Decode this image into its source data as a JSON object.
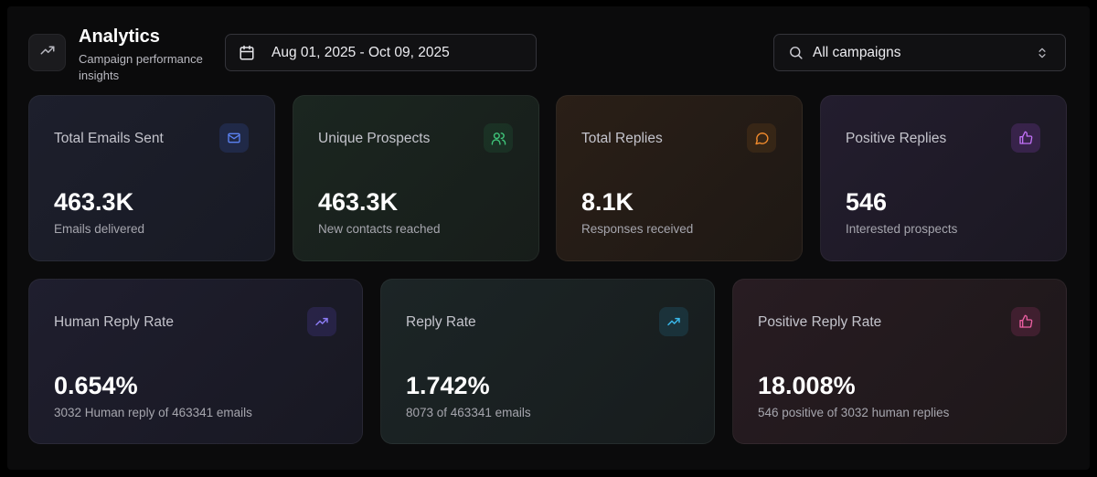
{
  "header": {
    "title": "Analytics",
    "subtitle": "Campaign performance insights",
    "logo_icon": "trending-up-icon"
  },
  "date_range": {
    "icon": "calendar-icon",
    "value": "Aug 01, 2025 - Oct 09, 2025"
  },
  "campaign_filter": {
    "icon": "search-icon",
    "value": "All campaigns",
    "chevron_icon": "chevron-up-down-icon"
  },
  "metrics": [
    {
      "label": "Total Emails Sent",
      "value": "463.3K",
      "description": "Emails delivered",
      "icon": "mail-icon",
      "accent": "#5b82f2"
    },
    {
      "label": "Unique Prospects",
      "value": "463.3K",
      "description": "New contacts reached",
      "icon": "users-icon",
      "accent": "#3fc57a"
    },
    {
      "label": "Total Replies",
      "value": "8.1K",
      "description": "Responses received",
      "icon": "message-circle-icon",
      "accent": "#f08a2c"
    },
    {
      "label": "Positive Replies",
      "value": "546",
      "description": "Interested prospects",
      "icon": "thumbs-up-icon",
      "accent": "#b25df0"
    }
  ],
  "rates": [
    {
      "label": "Human Reply Rate",
      "value": "0.654%",
      "description": "3032 Human reply of 463341 emails",
      "icon": "trending-up-icon",
      "accent": "#7d6cf0"
    },
    {
      "label": "Reply Rate",
      "value": "1.742%",
      "description": "8073 of 463341 emails",
      "icon": "trending-up-icon",
      "accent": "#34b3e6"
    },
    {
      "label": "Positive Reply Rate",
      "value": "18.008%",
      "description": "546 positive of 3032 human replies",
      "icon": "thumbs-up-icon",
      "accent": "#e6559a"
    }
  ]
}
